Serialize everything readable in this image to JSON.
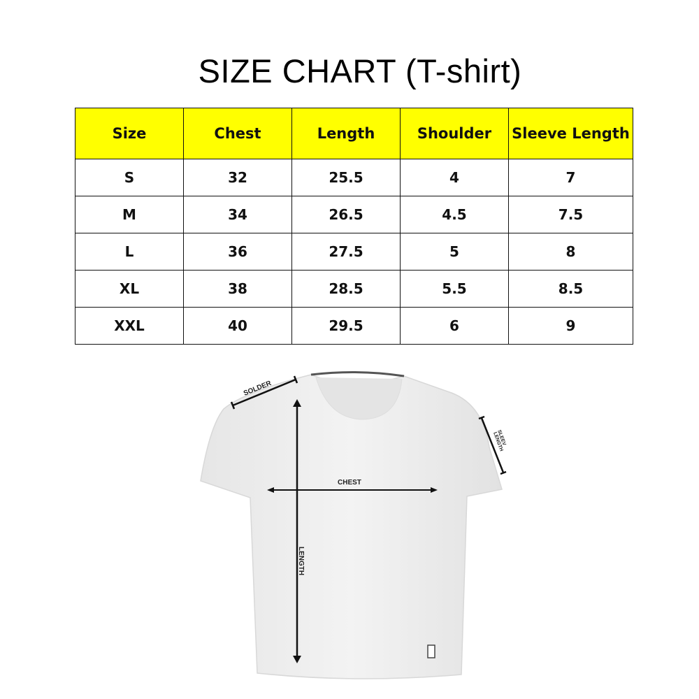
{
  "title": "SIZE CHART (T-shirt)",
  "table": {
    "headers": [
      "Size",
      "Chest",
      "Length",
      "Shoulder",
      "Sleeve Length"
    ],
    "rows": [
      [
        "S",
        "32",
        "25.5",
        "4",
        "7"
      ],
      [
        "M",
        "34",
        "26.5",
        "4.5",
        "7.5"
      ],
      [
        "L",
        "36",
        "27.5",
        "5",
        "8"
      ],
      [
        "XL",
        "38",
        "28.5",
        "5.5",
        "8.5"
      ],
      [
        "XXL",
        "40",
        "29.5",
        "6",
        "9"
      ]
    ]
  },
  "diagram": {
    "solder_label": "SOLDER",
    "chest_label": "CHEST",
    "length_label": "LENGTH",
    "sleeve_label_line1": "SLEEV",
    "sleeve_label_line2": "LENGTH"
  },
  "colors": {
    "header_bg": "#ffff00"
  }
}
